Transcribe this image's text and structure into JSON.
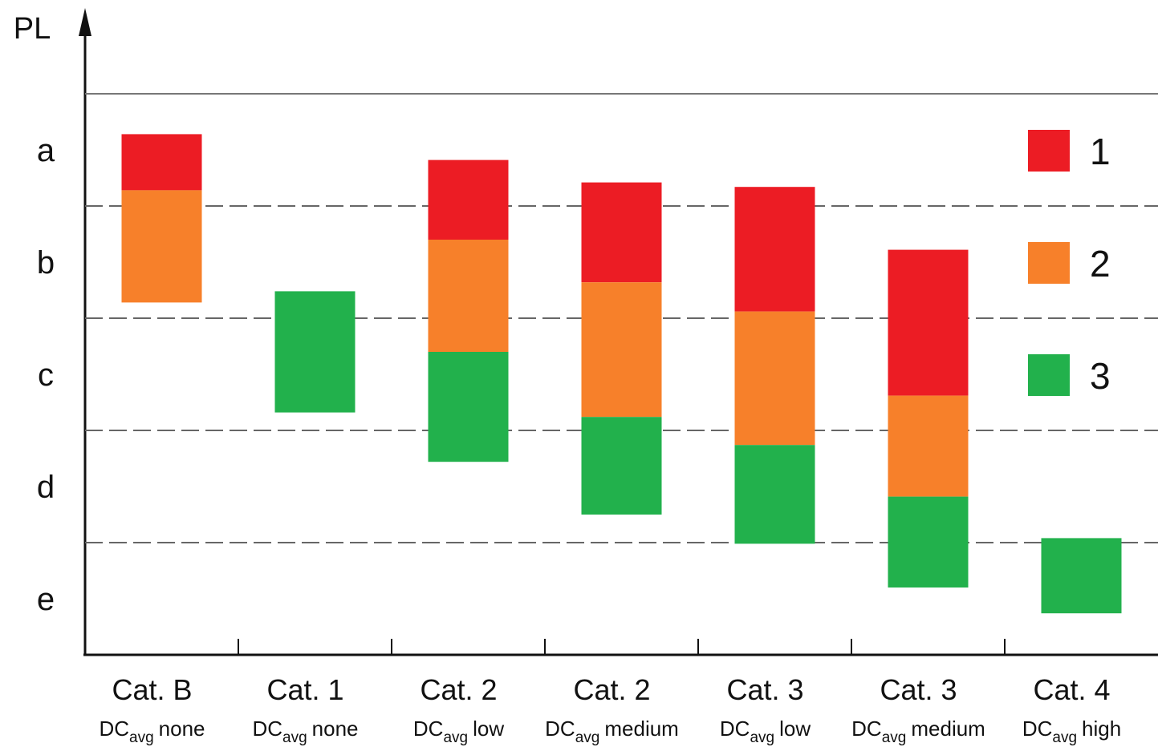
{
  "chart_data": {
    "type": "floating-bar",
    "y_label": "PL",
    "ylim": [
      0,
      5
    ],
    "yticks": [
      {
        "value": 4.5,
        "label": "a"
      },
      {
        "value": 3.5,
        "label": "b"
      },
      {
        "value": 2.5,
        "label": "c"
      },
      {
        "value": 1.5,
        "label": "d"
      },
      {
        "value": 0.5,
        "label": "e"
      }
    ],
    "grid_values": [
      1,
      2,
      3,
      4
    ],
    "categories": [
      {
        "cat": "Cat. B",
        "dc": "DC",
        "sub": "avg",
        "level": "none"
      },
      {
        "cat": "Cat. 1",
        "dc": "DC",
        "sub": "avg",
        "level": "none"
      },
      {
        "cat": "Cat. 2",
        "dc": "DC",
        "sub": "avg",
        "level": "low"
      },
      {
        "cat": "Cat. 2",
        "dc": "DC",
        "sub": "avg",
        "level": "medium"
      },
      {
        "cat": "Cat. 3",
        "dc": "DC",
        "sub": "avg",
        "level": "low"
      },
      {
        "cat": "Cat. 3",
        "dc": "DC",
        "sub": "avg",
        "level": "medium"
      },
      {
        "cat": "Cat. 4",
        "dc": "DC",
        "sub": "avg",
        "level": "high"
      }
    ],
    "series": [
      {
        "name": "1",
        "color": "#ec1c24",
        "values": [
          [
            4.14,
            4.64
          ],
          null,
          [
            3.7,
            4.41
          ],
          [
            3.32,
            4.21
          ],
          [
            3.06,
            4.17
          ],
          [
            2.31,
            3.61
          ],
          null
        ]
      },
      {
        "name": "2",
        "color": "#f7802a",
        "values": [
          [
            3.14,
            4.14
          ],
          null,
          [
            2.7,
            3.7
          ],
          [
            2.12,
            3.32
          ],
          [
            1.87,
            3.06
          ],
          [
            1.41,
            2.31
          ],
          null
        ]
      },
      {
        "name": "3",
        "color": "#22b14c",
        "values": [
          null,
          [
            2.16,
            3.24
          ],
          [
            1.72,
            2.7
          ],
          [
            1.25,
            2.12
          ],
          [
            0.99,
            1.87
          ],
          [
            0.6,
            1.41
          ],
          [
            0.37,
            1.04
          ]
        ]
      }
    ]
  }
}
